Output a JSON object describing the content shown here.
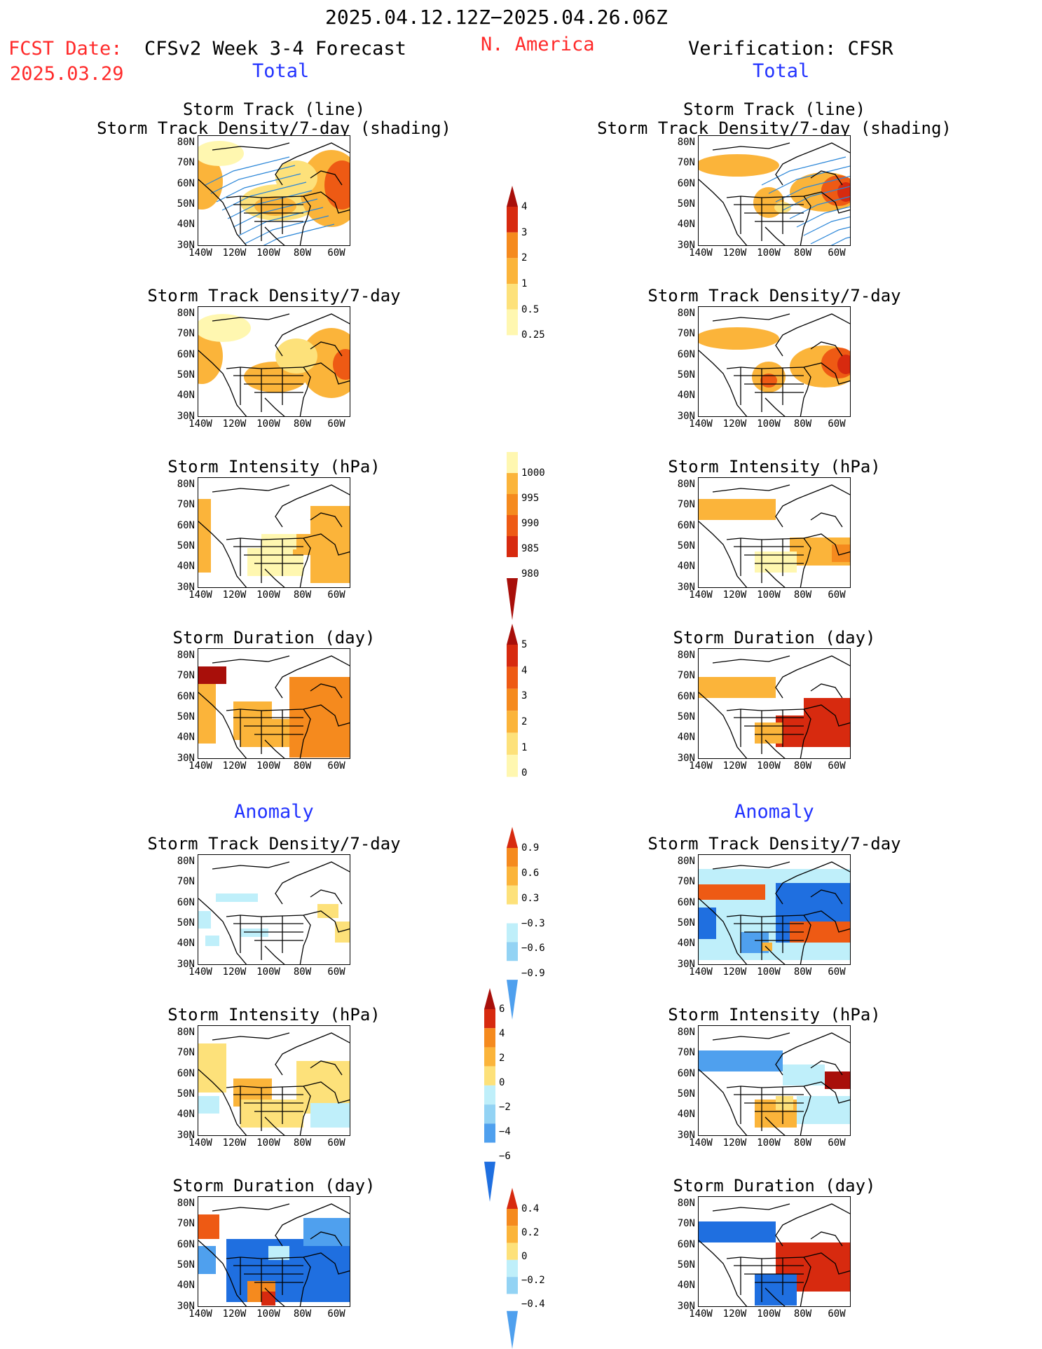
{
  "header": {
    "date_range": "2025.04.12.12Z−2025.04.26.06Z",
    "fcst_label": "FCST Date:",
    "fcst_date": "2025.03.29",
    "forecast_title": "CFSv2 Week 3-4 Forecast",
    "region": "N. America",
    "verification": "Verification: CFSR",
    "total_left": "Total",
    "total_right": "Total",
    "anomaly_left": "Anomaly",
    "anomaly_right": "Anomaly"
  },
  "colors": {
    "red_text": "#ff2a2a",
    "blue_text": "#2233ff",
    "shade_1": "#fff7b0",
    "shade_2": "#fde17a",
    "shade_3": "#fbb43a",
    "shade_4": "#f58a1e",
    "shade_5": "#ee5a14",
    "shade_6": "#d72a0f",
    "shade_7": "#a80f0a",
    "neg_1": "#bfeffa",
    "neg_2": "#93d3f4",
    "neg_3": "#4fa0ee",
    "neg_4": "#1f6fe0",
    "track_line": "#2b86d8"
  },
  "axis_labels": {
    "y": [
      "80N",
      "70N",
      "60N",
      "50N",
      "40N",
      "30N"
    ],
    "x": [
      "140W",
      "120W",
      "100W",
      "80W",
      "60W"
    ]
  },
  "chart_data": {
    "type": "heatmap",
    "panels": [
      {
        "id": "fc-track",
        "title": "Storm Track (line)\nStorm Track Density/7-day (shading)",
        "column": "forecast",
        "section": "total"
      },
      {
        "id": "fc-density",
        "title": "Storm Track Density/7-day",
        "column": "forecast",
        "section": "total"
      },
      {
        "id": "fc-intensity",
        "title": "Storm Intensity (hPa)",
        "column": "forecast",
        "section": "total"
      },
      {
        "id": "fc-duration",
        "title": "Storm Duration (day)",
        "column": "forecast",
        "section": "total"
      },
      {
        "id": "fc-density-anom",
        "title": "Storm Track Density/7-day",
        "column": "forecast",
        "section": "anomaly"
      },
      {
        "id": "fc-intensity-anom",
        "title": "Storm Intensity (hPa)",
        "column": "forecast",
        "section": "anomaly"
      },
      {
        "id": "fc-duration-anom",
        "title": "Storm Duration (day)",
        "column": "forecast",
        "section": "anomaly"
      },
      {
        "id": "vf-track",
        "title": "Storm Track (line)\nStorm Track Density/7-day (shading)",
        "column": "verification",
        "section": "total"
      },
      {
        "id": "vf-density",
        "title": "Storm Track Density/7-day",
        "column": "verification",
        "section": "total"
      },
      {
        "id": "vf-intensity",
        "title": "Storm Intensity (hPa)",
        "column": "verification",
        "section": "total"
      },
      {
        "id": "vf-duration",
        "title": "Storm Duration (day)",
        "column": "verification",
        "section": "total"
      },
      {
        "id": "vf-density-anom",
        "title": "Storm Track Density/7-day",
        "column": "verification",
        "section": "anomaly"
      },
      {
        "id": "vf-intensity-anom",
        "title": "Storm Intensity (hPa)",
        "column": "verification",
        "section": "anomaly"
      },
      {
        "id": "vf-duration-anom",
        "title": "Storm Duration (day)",
        "column": "verification",
        "section": "anomaly"
      }
    ],
    "colorbars": [
      {
        "id": "cb-density",
        "labels": [
          "4",
          "3",
          "2",
          "1",
          "0.5",
          "0.25"
        ]
      },
      {
        "id": "cb-intensity",
        "labels": [
          "1000",
          "995",
          "990",
          "985",
          "980"
        ]
      },
      {
        "id": "cb-duration",
        "labels": [
          "5",
          "4",
          "3",
          "2",
          "1",
          "0"
        ]
      },
      {
        "id": "cb-density-anom",
        "labels": [
          "0.9",
          "0.6",
          "0.3",
          "−0.3",
          "−0.6",
          "−0.9"
        ]
      },
      {
        "id": "cb-intensity-anom",
        "labels": [
          "6",
          "4",
          "2",
          "0",
          "−2",
          "−4",
          "−6"
        ]
      },
      {
        "id": "cb-duration-anom",
        "labels": [
          "0.4",
          "0.2",
          "0",
          "−0.2",
          "−0.4"
        ]
      }
    ]
  }
}
